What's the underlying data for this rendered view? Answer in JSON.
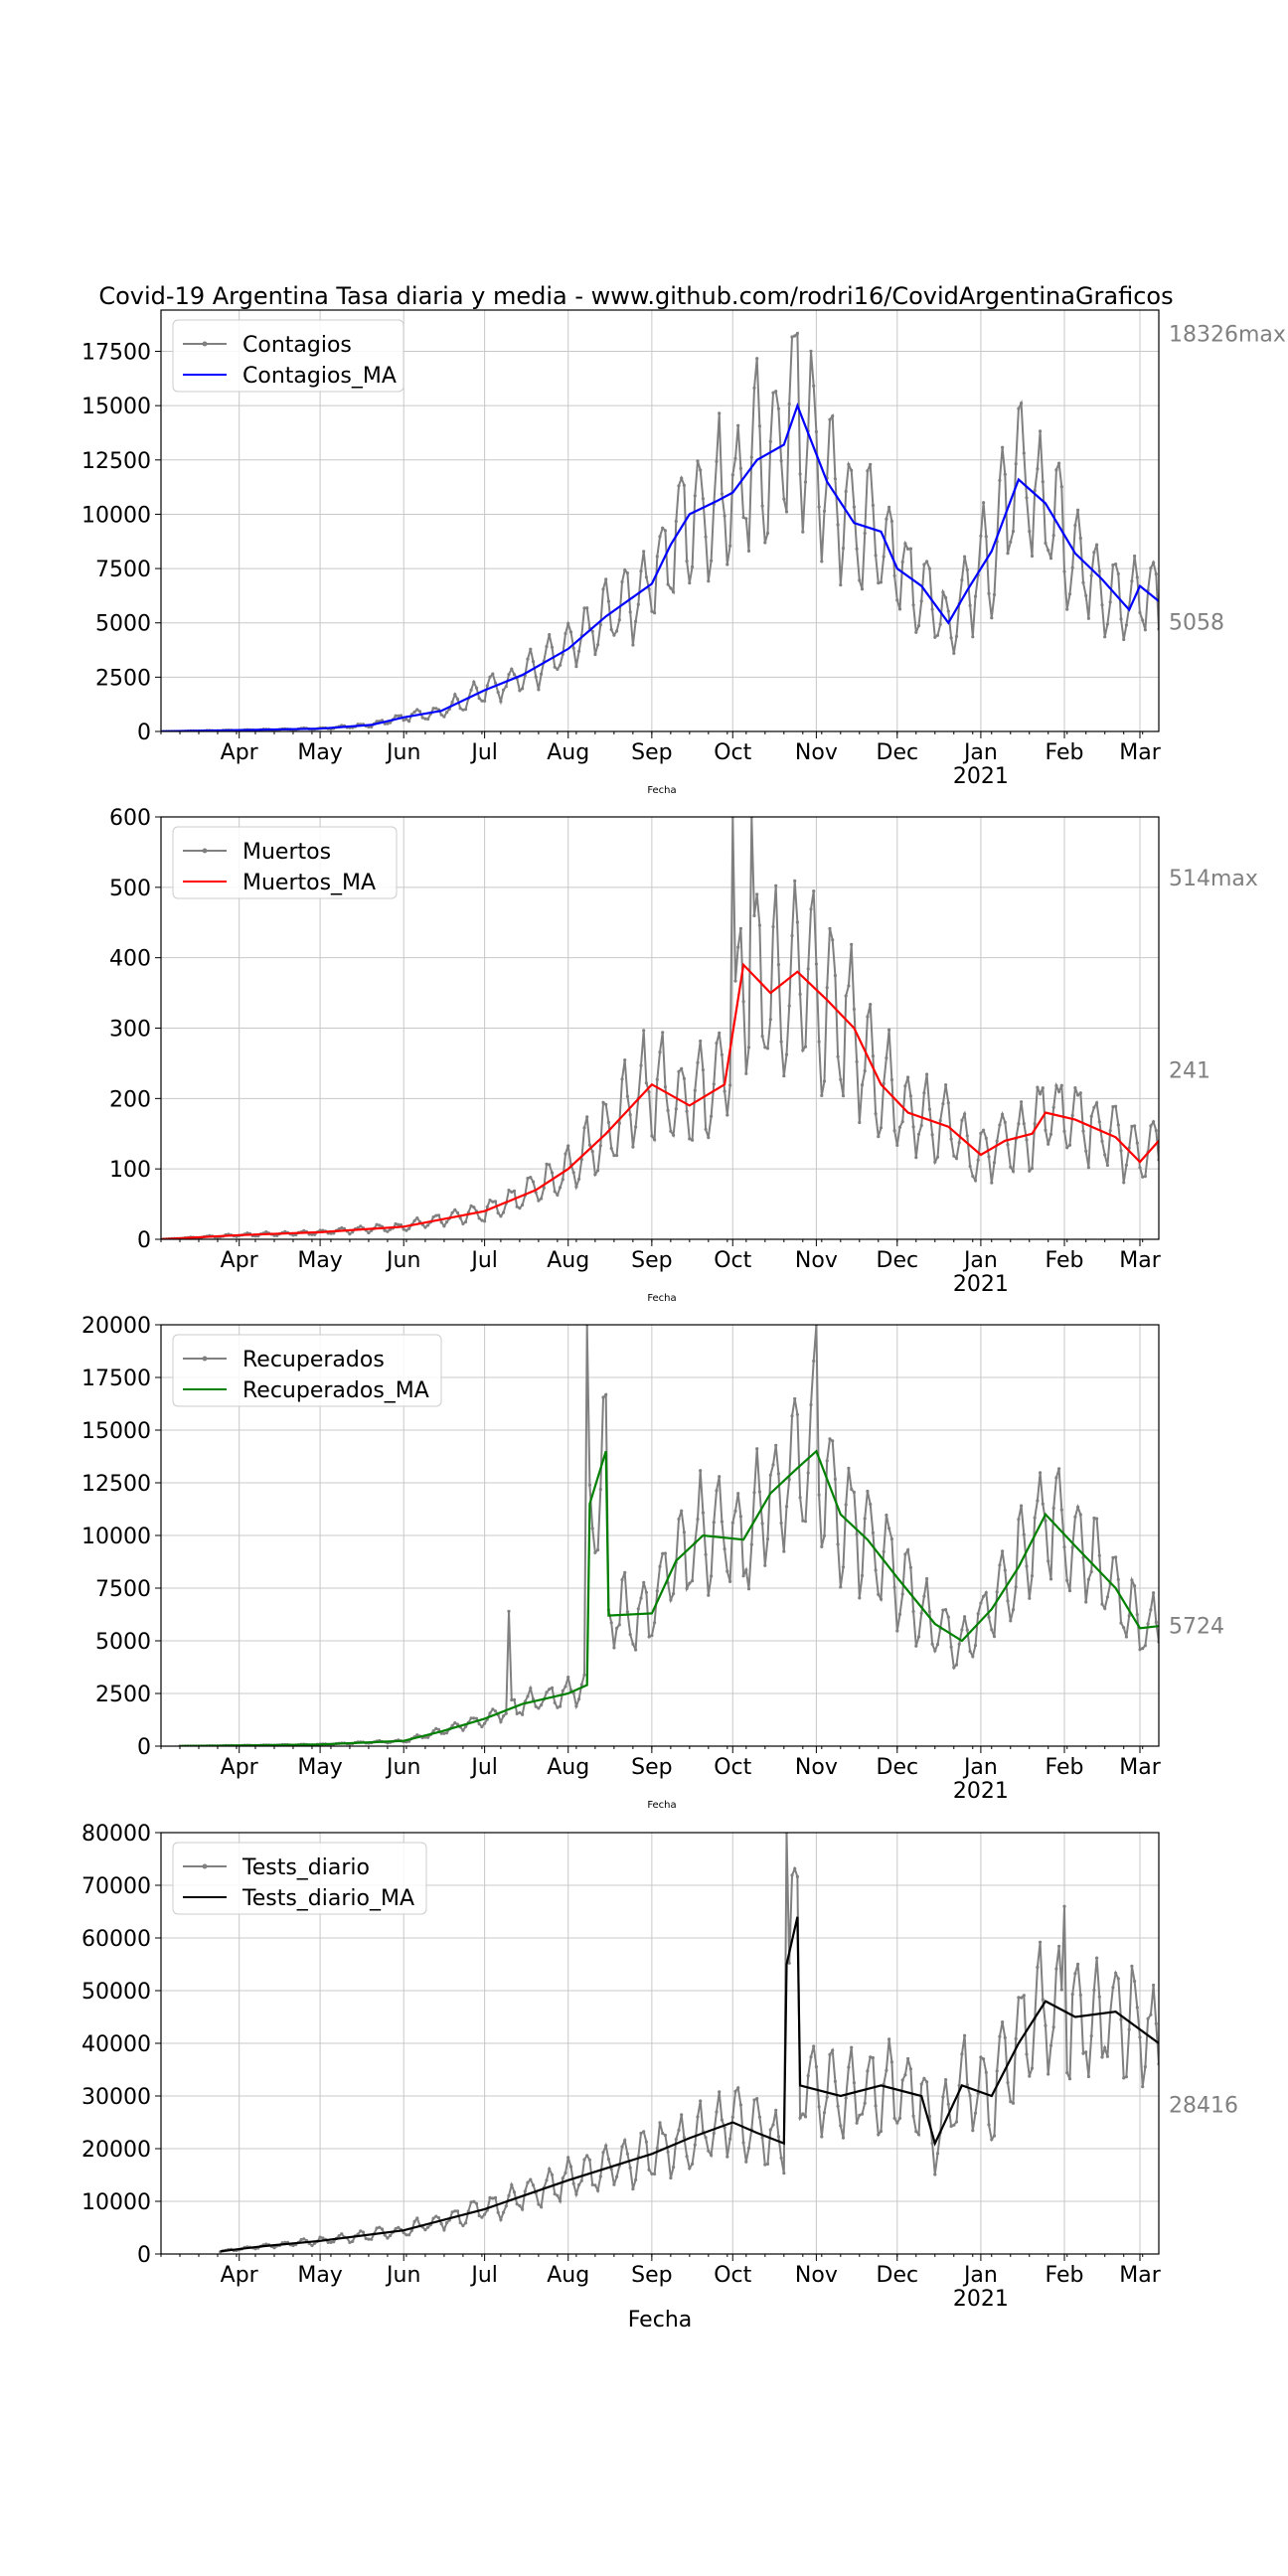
{
  "figure": {
    "title": "Covid-19 Argentina Tasa diaria y media - www.github.com/rodri16/CovidArgentinaGraficos",
    "month_ticks": [
      "Apr",
      "May",
      "Jun",
      "Jul",
      "Aug",
      "Sep",
      "Oct",
      "Nov",
      "Dec",
      "Jan",
      "Feb",
      "Mar"
    ],
    "year_label": "2021",
    "xlabel_small": "Fecha",
    "xlabel_bottom": "Fecha"
  },
  "chart_data": [
    {
      "type": "line",
      "x_start": "2020-03-03",
      "x_end": "2021-03-08",
      "ylim": [
        0,
        19400
      ],
      "yticks": [
        0,
        2500,
        5000,
        7500,
        10000,
        12500,
        15000,
        17500
      ],
      "legend": {
        "placement": "top-left",
        "entries": [
          "Contagios",
          "Contagios_MA"
        ]
      },
      "series": [
        {
          "name": "Contagios",
          "color": "#808080",
          "markers": true
        },
        {
          "name": "Contagios_MA",
          "color": "#0000ff",
          "markers": false
        }
      ],
      "ma_anchors": [
        [
          "2020-03-03",
          0
        ],
        [
          "2020-04-01",
          60
        ],
        [
          "2020-05-01",
          130
        ],
        [
          "2020-05-20",
          300
        ],
        [
          "2020-06-01",
          650
        ],
        [
          "2020-06-15",
          950
        ],
        [
          "2020-07-01",
          1900
        ],
        [
          "2020-07-15",
          2600
        ],
        [
          "2020-08-01",
          3800
        ],
        [
          "2020-08-15",
          5300
        ],
        [
          "2020-09-01",
          6800
        ],
        [
          "2020-09-08",
          8600
        ],
        [
          "2020-09-15",
          10000
        ],
        [
          "2020-09-25",
          10600
        ],
        [
          "2020-10-01",
          11000
        ],
        [
          "2020-10-10",
          12500
        ],
        [
          "2020-10-20",
          13200
        ],
        [
          "2020-10-25",
          15000
        ],
        [
          "2020-11-05",
          11500
        ],
        [
          "2020-11-15",
          9600
        ],
        [
          "2020-11-25",
          9200
        ],
        [
          "2020-12-01",
          7500
        ],
        [
          "2020-12-10",
          6700
        ],
        [
          "2020-12-20",
          5000
        ],
        [
          "2020-12-27",
          6500
        ],
        [
          "2021-01-05",
          8300
        ],
        [
          "2021-01-15",
          11600
        ],
        [
          "2021-01-25",
          10500
        ],
        [
          "2021-02-05",
          8200
        ],
        [
          "2021-02-15",
          7000
        ],
        [
          "2021-02-25",
          5600
        ],
        [
          "2021-03-01",
          6700
        ],
        [
          "2021-03-08",
          6000
        ]
      ],
      "spike_anchors": [
        [
          "2020-10-25",
          18326
        ]
      ],
      "noise": 0.35,
      "annotations": [
        {
          "text": "18326max",
          "value": 18326,
          "color": "#808080"
        },
        {
          "text": "5058",
          "value": 5058,
          "color": "#808080"
        }
      ]
    },
    {
      "type": "line",
      "x_start": "2020-03-03",
      "x_end": "2021-03-08",
      "ylim": [
        0,
        600
      ],
      "yticks": [
        0,
        100,
        200,
        300,
        400,
        500,
        600
      ],
      "legend": {
        "placement": "top-left",
        "entries": [
          "Muertos",
          "Muertos_MA"
        ]
      },
      "series": [
        {
          "name": "Muertos",
          "color": "#808080",
          "markers": true
        },
        {
          "name": "Muertos_MA",
          "color": "#ff0000",
          "markers": false
        }
      ],
      "ma_anchors": [
        [
          "2020-03-03",
          0
        ],
        [
          "2020-04-01",
          6
        ],
        [
          "2020-05-01",
          10
        ],
        [
          "2020-06-01",
          18
        ],
        [
          "2020-07-01",
          40
        ],
        [
          "2020-07-20",
          70
        ],
        [
          "2020-08-01",
          100
        ],
        [
          "2020-08-15",
          150
        ],
        [
          "2020-09-01",
          220
        ],
        [
          "2020-09-15",
          190
        ],
        [
          "2020-09-28",
          220
        ],
        [
          "2020-10-05",
          390
        ],
        [
          "2020-10-15",
          350
        ],
        [
          "2020-10-25",
          380
        ],
        [
          "2020-11-05",
          340
        ],
        [
          "2020-11-15",
          300
        ],
        [
          "2020-11-25",
          220
        ],
        [
          "2020-12-05",
          180
        ],
        [
          "2020-12-20",
          160
        ],
        [
          "2021-01-01",
          120
        ],
        [
          "2021-01-10",
          140
        ],
        [
          "2021-01-20",
          150
        ],
        [
          "2021-01-25",
          180
        ],
        [
          "2021-02-05",
          170
        ],
        [
          "2021-02-20",
          145
        ],
        [
          "2021-03-01",
          110
        ],
        [
          "2021-03-08",
          140
        ]
      ],
      "spike_anchors": [
        [
          "2020-10-01",
          3350
        ],
        [
          "2020-10-08",
          700
        ]
      ],
      "noise": 0.4,
      "annotations": [
        {
          "text": "514max",
          "value": 514,
          "color": "#808080"
        },
        {
          "text": "241",
          "value": 241,
          "color": "#808080"
        }
      ]
    },
    {
      "type": "line",
      "x_start": "2020-03-03",
      "x_end": "2021-03-08",
      "ylim": [
        0,
        20000
      ],
      "yticks": [
        0,
        2500,
        5000,
        7500,
        10000,
        12500,
        15000,
        17500,
        20000
      ],
      "legend": {
        "placement": "top-left",
        "entries": [
          "Recuperados",
          "Recuperados_MA"
        ]
      },
      "series": [
        {
          "name": "Recuperados",
          "color": "#808080",
          "markers": true
        },
        {
          "name": "Recuperados_MA",
          "color": "#008000",
          "markers": false
        }
      ],
      "ma_anchors": [
        [
          "2020-03-10",
          0
        ],
        [
          "2020-04-01",
          30
        ],
        [
          "2020-05-01",
          80
        ],
        [
          "2020-06-01",
          250
        ],
        [
          "2020-06-15",
          700
        ],
        [
          "2020-07-01",
          1300
        ],
        [
          "2020-07-15",
          2000
        ],
        [
          "2020-08-01",
          2500
        ],
        [
          "2020-08-08",
          2900
        ],
        [
          "2020-08-09",
          11500
        ],
        [
          "2020-08-15",
          14000
        ],
        [
          "2020-08-16",
          6200
        ],
        [
          "2020-09-01",
          6300
        ],
        [
          "2020-09-10",
          8800
        ],
        [
          "2020-09-20",
          10000
        ],
        [
          "2020-10-05",
          9800
        ],
        [
          "2020-10-15",
          12000
        ],
        [
          "2020-10-25",
          13200
        ],
        [
          "2020-11-01",
          14000
        ],
        [
          "2020-11-10",
          11000
        ],
        [
          "2020-11-20",
          9800
        ],
        [
          "2020-12-01",
          8000
        ],
        [
          "2020-12-15",
          5800
        ],
        [
          "2020-12-25",
          5000
        ],
        [
          "2021-01-05",
          6500
        ],
        [
          "2021-01-15",
          8500
        ],
        [
          "2021-01-25",
          11000
        ],
        [
          "2021-02-05",
          9500
        ],
        [
          "2021-02-20",
          7500
        ],
        [
          "2021-03-01",
          5600
        ],
        [
          "2021-03-08",
          5700
        ]
      ],
      "spike_anchors": [
        [
          "2020-08-08",
          20000
        ],
        [
          "2020-11-01",
          20000
        ],
        [
          "2020-07-10",
          6400
        ]
      ],
      "noise": 0.3,
      "annotations": [
        {
          "text": "5724",
          "value": 5724,
          "color": "#808080"
        }
      ]
    },
    {
      "type": "line",
      "x_start": "2020-03-03",
      "x_end": "2021-03-08",
      "ylim": [
        0,
        80000
      ],
      "yticks": [
        0,
        10000,
        20000,
        30000,
        40000,
        50000,
        60000,
        70000,
        80000
      ],
      "legend": {
        "placement": "top-left",
        "entries": [
          "Tests_diario",
          "Tests_diario_MA"
        ]
      },
      "series": [
        {
          "name": "Tests_diario",
          "color": "#808080",
          "markers": true
        },
        {
          "name": "Tests_diario_MA",
          "color": "#000000",
          "markers": false
        }
      ],
      "ma_anchors": [
        [
          "2020-03-25",
          500
        ],
        [
          "2020-04-10",
          1500
        ],
        [
          "2020-05-01",
          2500
        ],
        [
          "2020-06-01",
          4500
        ],
        [
          "2020-07-01",
          8500
        ],
        [
          "2020-08-01",
          14000
        ],
        [
          "2020-09-01",
          19000
        ],
        [
          "2020-09-15",
          22000
        ],
        [
          "2020-10-01",
          25000
        ],
        [
          "2020-10-10",
          23000
        ],
        [
          "2020-10-20",
          21000
        ],
        [
          "2020-10-21",
          55000
        ],
        [
          "2020-10-25",
          64000
        ],
        [
          "2020-10-26",
          32000
        ],
        [
          "2020-11-10",
          30000
        ],
        [
          "2020-11-25",
          32000
        ],
        [
          "2020-12-10",
          30000
        ],
        [
          "2020-12-15",
          21000
        ],
        [
          "2020-12-25",
          32000
        ],
        [
          "2021-01-05",
          30000
        ],
        [
          "2021-01-15",
          40000
        ],
        [
          "2021-01-25",
          48000
        ],
        [
          "2021-02-05",
          45000
        ],
        [
          "2021-02-20",
          46000
        ],
        [
          "2021-03-08",
          40000
        ]
      ],
      "spike_anchors": [
        [
          "2020-10-21",
          80000
        ],
        [
          "2021-02-01",
          66000
        ]
      ],
      "noise": 0.3,
      "annotations": [
        {
          "text": "28416",
          "value": 28416,
          "color": "#808080"
        }
      ]
    }
  ]
}
